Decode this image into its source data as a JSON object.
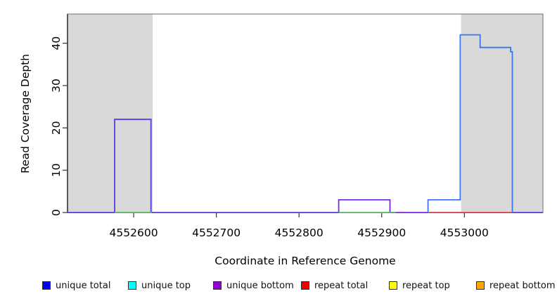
{
  "chart_data": {
    "type": "area",
    "title": "",
    "xlabel": "Coordinate in Reference Genome",
    "ylabel": "Read Coverage Depth",
    "xlim": [
      4552520,
      4553095
    ],
    "ylim": [
      0,
      46.9
    ],
    "xticks": [
      4552600,
      4552700,
      4552800,
      4552900,
      4553000
    ],
    "yticks": [
      0,
      10,
      20,
      30,
      40
    ],
    "grid": false,
    "legend_position": "bottom",
    "colors": {
      "repeat_region_fill": "#D9D9D9",
      "box_border": "#8C8C8C",
      "axis_line": "#1a1a1a",
      "tick": "#333333"
    },
    "repeat_regions": [
      {
        "name": "repeat-region-left",
        "start": 4552520,
        "end": 4552623
      },
      {
        "name": "repeat-region-right",
        "start": 4552996,
        "end": 4553095
      }
    ],
    "series": [
      {
        "name": "unique-coverage-left-step",
        "color": "#5B3BDD",
        "points": [
          [
            4552520,
            0
          ],
          [
            4552577,
            0
          ],
          [
            4552577,
            22
          ],
          [
            4552621,
            22
          ],
          [
            4552621,
            0
          ],
          [
            4552848,
            0
          ]
        ]
      },
      {
        "name": "unique-bottom-mid-step",
        "color": "#7A2BDE",
        "points": [
          [
            4552848,
            0
          ],
          [
            4552848,
            3
          ],
          [
            4552910,
            3
          ],
          [
            4552910,
            0
          ],
          [
            4552956,
            0
          ]
        ]
      },
      {
        "name": "unique-baseline-right",
        "color": "#5B3BDD",
        "points": [
          [
            4553057,
            0
          ],
          [
            4553095,
            0
          ]
        ]
      },
      {
        "name": "top-strand-baseline-left",
        "color": "#5BB55F",
        "points": [
          [
            4552577,
            0
          ],
          [
            4552622,
            0
          ]
        ]
      },
      {
        "name": "top-strand-baseline-mid",
        "color": "#5BB55F",
        "points": [
          [
            4552848,
            0
          ],
          [
            4552917,
            0
          ]
        ]
      },
      {
        "name": "repeat-total-baseline",
        "color": "#D23B55",
        "points": [
          [
            4552956,
            0
          ],
          [
            4553057,
            0
          ]
        ]
      },
      {
        "name": "unique-total-right-peak",
        "color": "#3B76EE",
        "points": [
          [
            4552956,
            0
          ],
          [
            4552956,
            3
          ],
          [
            4552995,
            3
          ],
          [
            4552995,
            42
          ],
          [
            4553019,
            42
          ],
          [
            4553019,
            39
          ],
          [
            4553056,
            39
          ],
          [
            4553056,
            38
          ],
          [
            4553058,
            38
          ],
          [
            4553058,
            0
          ]
        ]
      }
    ],
    "legend": [
      {
        "label": "unique total",
        "color": "#0000EE"
      },
      {
        "label": "unique top",
        "color": "#00FFFF"
      },
      {
        "label": "unique bottom",
        "color": "#9400D3"
      },
      {
        "label": "repeat total",
        "color": "#EE0000"
      },
      {
        "label": "repeat top",
        "color": "#FFFF00"
      },
      {
        "label": "repeat bottom",
        "color": "#FFA500"
      }
    ]
  }
}
